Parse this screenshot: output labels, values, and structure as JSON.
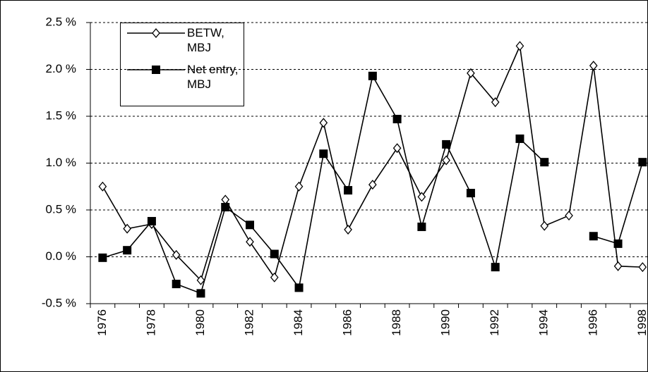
{
  "chart_data": {
    "type": "line",
    "categories": [
      "1976",
      null,
      "1978",
      null,
      "1980",
      null,
      "1982",
      null,
      "1984",
      null,
      "1986",
      null,
      "1988",
      null,
      "1990",
      null,
      "1992",
      null,
      "1994",
      null,
      "1996",
      null,
      "1998"
    ],
    "series": [
      {
        "name": "BETW, MBJ",
        "color": "#000000",
        "marker": "diamond",
        "values": [
          0.75,
          0.3,
          0.35,
          0.02,
          -0.25,
          0.61,
          0.16,
          -0.22,
          0.75,
          1.43,
          0.29,
          0.77,
          1.16,
          0.64,
          1.03,
          1.96,
          1.65,
          2.25,
          0.33,
          0.44,
          2.04,
          -0.1,
          -0.11
        ]
      },
      {
        "name": "Net entry, MBJ",
        "color": "#000000",
        "marker": "square",
        "values": [
          -0.01,
          0.07,
          0.38,
          -0.29,
          -0.39,
          0.53,
          0.34,
          0.03,
          -0.33,
          1.1,
          0.71,
          1.93,
          1.47,
          0.32,
          1.2,
          0.68,
          -0.11,
          1.26,
          1.01,
          null,
          0.22,
          0.14,
          1.01
        ]
      }
    ],
    "ylim": [
      -0.5,
      2.5
    ],
    "yticks": [
      {
        "value": -0.5,
        "label": "-0.5 %"
      },
      {
        "value": 0.0,
        "label": "0.0 %"
      },
      {
        "value": 0.5,
        "label": "0.5 %"
      },
      {
        "value": 1.0,
        "label": "1.0 %"
      },
      {
        "value": 1.5,
        "label": "1.5 %"
      },
      {
        "value": 2.0,
        "label": "2.0 %"
      },
      {
        "value": 2.5,
        "label": "2.5 %"
      }
    ],
    "grid": true
  }
}
